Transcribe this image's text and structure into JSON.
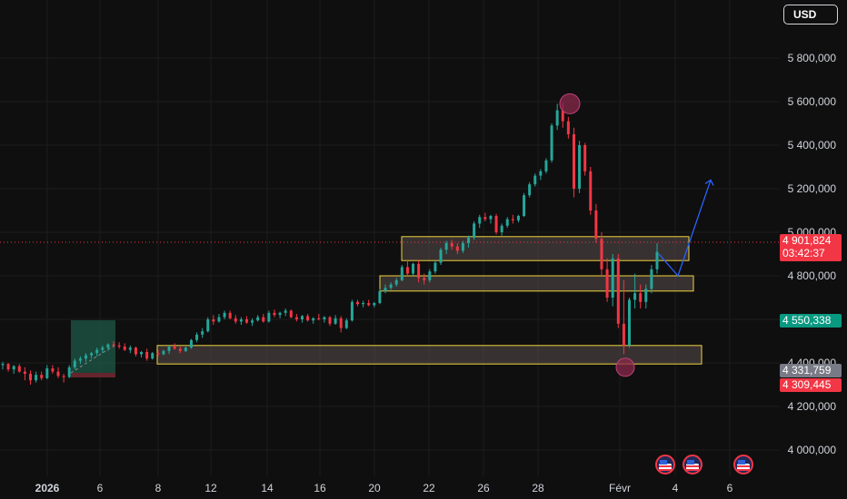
{
  "currency_button": "USD",
  "price_axis": {
    "ticks": [
      "5 800,000",
      "5 600,000",
      "5 400,000",
      "5 200,000",
      "5 000,000",
      "4 800,000",
      "4 600,000",
      "4 400,000",
      "4 200,000",
      "4 000,000"
    ]
  },
  "time_axis": {
    "ticks": [
      {
        "label": "2026",
        "bold": true
      },
      {
        "label": "6",
        "bold": false
      },
      {
        "label": "8",
        "bold": false
      },
      {
        "label": "12",
        "bold": false
      },
      {
        "label": "14",
        "bold": false
      },
      {
        "label": "16",
        "bold": false
      },
      {
        "label": "20",
        "bold": false
      },
      {
        "label": "22",
        "bold": false
      },
      {
        "label": "26",
        "bold": false
      },
      {
        "label": "28",
        "bold": false
      },
      {
        "label": "Févr",
        "bold": false
      },
      {
        "label": "4",
        "bold": false
      },
      {
        "label": "6",
        "bold": false
      }
    ]
  },
  "price_tags": {
    "current_price": "4 901,824",
    "countdown": "03:42:37",
    "green_level": "4 550,338",
    "gray_level": "4 331,759",
    "red_level": "4 309,445"
  },
  "colors": {
    "up": "#26a69a",
    "down": "#f23645",
    "zone_border": "#f0d33c",
    "projection": "#2962ff",
    "background": "#0f0f0f"
  },
  "chart_data": {
    "type": "candlestick",
    "y_range": [
      3900,
      5900
    ],
    "current_price": 4901.824,
    "support_resistance_zones": [
      {
        "low": 4870,
        "high": 4980
      },
      {
        "low": 4730,
        "high": 4800
      },
      {
        "low": 4395,
        "high": 4480
      }
    ],
    "marked_extremes": {
      "high": 5590,
      "low": 4380
    },
    "projection_path": [
      4900,
      4800,
      5240
    ],
    "candles": [
      [
        4390,
        4405,
        4370,
        4395
      ],
      [
        4395,
        4400,
        4360,
        4370
      ],
      [
        4370,
        4390,
        4350,
        4385
      ],
      [
        4385,
        4395,
        4355,
        4360
      ],
      [
        4360,
        4380,
        4320,
        4350
      ],
      [
        4350,
        4365,
        4300,
        4320
      ],
      [
        4320,
        4360,
        4310,
        4345
      ],
      [
        4345,
        4360,
        4320,
        4330
      ],
      [
        4330,
        4390,
        4325,
        4375
      ],
      [
        4375,
        4390,
        4350,
        4360
      ],
      [
        4360,
        4380,
        4330,
        4340
      ],
      [
        4340,
        4350,
        4310,
        4335
      ],
      [
        4335,
        4390,
        4330,
        4380
      ],
      [
        4380,
        4420,
        4370,
        4410
      ],
      [
        4410,
        4430,
        4395,
        4420
      ],
      [
        4420,
        4445,
        4405,
        4435
      ],
      [
        4435,
        4450,
        4420,
        4445
      ],
      [
        4445,
        4470,
        4430,
        4460
      ],
      [
        4460,
        4480,
        4445,
        4470
      ],
      [
        4470,
        4490,
        4455,
        4485
      ],
      [
        4485,
        4500,
        4470,
        4480
      ],
      [
        4480,
        4495,
        4465,
        4475
      ],
      [
        4475,
        4490,
        4455,
        4460
      ],
      [
        4460,
        4480,
        4445,
        4470
      ],
      [
        4470,
        4475,
        4430,
        4440
      ],
      [
        4440,
        4455,
        4425,
        4450
      ],
      [
        4450,
        4465,
        4410,
        4420
      ],
      [
        4420,
        4450,
        4415,
        4445
      ],
      [
        4445,
        4460,
        4430,
        4440
      ],
      [
        4440,
        4460,
        4435,
        4455
      ],
      [
        4455,
        4480,
        4440,
        4475
      ],
      [
        4475,
        4490,
        4460,
        4465
      ],
      [
        4465,
        4475,
        4445,
        4455
      ],
      [
        4455,
        4475,
        4450,
        4470
      ],
      [
        4470,
        4510,
        4465,
        4505
      ],
      [
        4505,
        4540,
        4495,
        4530
      ],
      [
        4530,
        4560,
        4515,
        4545
      ],
      [
        4545,
        4610,
        4540,
        4600
      ],
      [
        4600,
        4620,
        4575,
        4590
      ],
      [
        4590,
        4625,
        4585,
        4610
      ],
      [
        4610,
        4640,
        4600,
        4630
      ],
      [
        4630,
        4640,
        4600,
        4605
      ],
      [
        4605,
        4620,
        4580,
        4590
      ],
      [
        4590,
        4610,
        4575,
        4600
      ],
      [
        4600,
        4615,
        4580,
        4585
      ],
      [
        4585,
        4605,
        4570,
        4595
      ],
      [
        4595,
        4620,
        4590,
        4610
      ],
      [
        4610,
        4625,
        4585,
        4590
      ],
      [
        4590,
        4640,
        4585,
        4630
      ],
      [
        4630,
        4645,
        4610,
        4620
      ],
      [
        4620,
        4635,
        4605,
        4630
      ],
      [
        4630,
        4650,
        4615,
        4640
      ],
      [
        4640,
        4645,
        4605,
        4610
      ],
      [
        4610,
        4625,
        4590,
        4600
      ],
      [
        4600,
        4620,
        4585,
        4615
      ],
      [
        4615,
        4625,
        4590,
        4595
      ],
      [
        4595,
        4610,
        4580,
        4605
      ],
      [
        4605,
        4625,
        4595,
        4600
      ],
      [
        4600,
        4615,
        4585,
        4610
      ],
      [
        4610,
        4615,
        4570,
        4580
      ],
      [
        4580,
        4620,
        4575,
        4605
      ],
      [
        4605,
        4615,
        4540,
        4560
      ],
      [
        4560,
        4605,
        4555,
        4595
      ],
      [
        4595,
        4690,
        4590,
        4680
      ],
      [
        4680,
        4690,
        4660,
        4670
      ],
      [
        4670,
        4685,
        4655,
        4675
      ],
      [
        4675,
        4690,
        4660,
        4665
      ],
      [
        4665,
        4680,
        4655,
        4675
      ],
      [
        4675,
        4740,
        4670,
        4730
      ],
      [
        4730,
        4760,
        4720,
        4745
      ],
      [
        4745,
        4770,
        4735,
        4760
      ],
      [
        4760,
        4790,
        4750,
        4780
      ],
      [
        4780,
        4850,
        4775,
        4840
      ],
      [
        4840,
        4870,
        4800,
        4810
      ],
      [
        4810,
        4860,
        4800,
        4855
      ],
      [
        4855,
        4870,
        4770,
        4790
      ],
      [
        4790,
        4810,
        4760,
        4780
      ],
      [
        4780,
        4830,
        4770,
        4820
      ],
      [
        4820,
        4870,
        4810,
        4860
      ],
      [
        4860,
        4930,
        4850,
        4920
      ],
      [
        4920,
        4960,
        4900,
        4950
      ],
      [
        4950,
        4965,
        4920,
        4935
      ],
      [
        4935,
        4950,
        4900,
        4915
      ],
      [
        4915,
        4960,
        4905,
        4950
      ],
      [
        4950,
        4985,
        4930,
        4975
      ],
      [
        4975,
        5050,
        4965,
        5040
      ],
      [
        5040,
        5080,
        5020,
        5070
      ],
      [
        5070,
        5090,
        5050,
        5060
      ],
      [
        5060,
        5080,
        5040,
        5075
      ],
      [
        5075,
        5085,
        4990,
        5000
      ],
      [
        5000,
        5040,
        4985,
        5030
      ],
      [
        5030,
        5070,
        5020,
        5060
      ],
      [
        5060,
        5080,
        5040,
        5055
      ],
      [
        5055,
        5080,
        5045,
        5075
      ],
      [
        5075,
        5180,
        5070,
        5170
      ],
      [
        5170,
        5230,
        5160,
        5220
      ],
      [
        5220,
        5270,
        5210,
        5260
      ],
      [
        5260,
        5290,
        5240,
        5280
      ],
      [
        5280,
        5340,
        5270,
        5330
      ],
      [
        5330,
        5500,
        5320,
        5490
      ],
      [
        5490,
        5590,
        5470,
        5560
      ],
      [
        5560,
        5595,
        5480,
        5510
      ],
      [
        5510,
        5530,
        5430,
        5450
      ],
      [
        5450,
        5480,
        5160,
        5200
      ],
      [
        5200,
        5420,
        5180,
        5400
      ],
      [
        5400,
        5410,
        5260,
        5280
      ],
      [
        5280,
        5300,
        5080,
        5100
      ],
      [
        5100,
        5130,
        4950,
        4970
      ],
      [
        4970,
        5000,
        4800,
        4830
      ],
      [
        4830,
        4880,
        4680,
        4700
      ],
      [
        4700,
        4900,
        4660,
        4880
      ],
      [
        4880,
        4900,
        4560,
        4580
      ],
      [
        4580,
        4780,
        4440,
        4480
      ],
      [
        4480,
        4700,
        4470,
        4690
      ],
      [
        4690,
        4810,
        4650,
        4720
      ],
      [
        4720,
        4760,
        4650,
        4680
      ],
      [
        4680,
        4760,
        4650,
        4740
      ],
      [
        4740,
        4850,
        4720,
        4830
      ],
      [
        4830,
        4950,
        4810,
        4910
      ]
    ]
  }
}
